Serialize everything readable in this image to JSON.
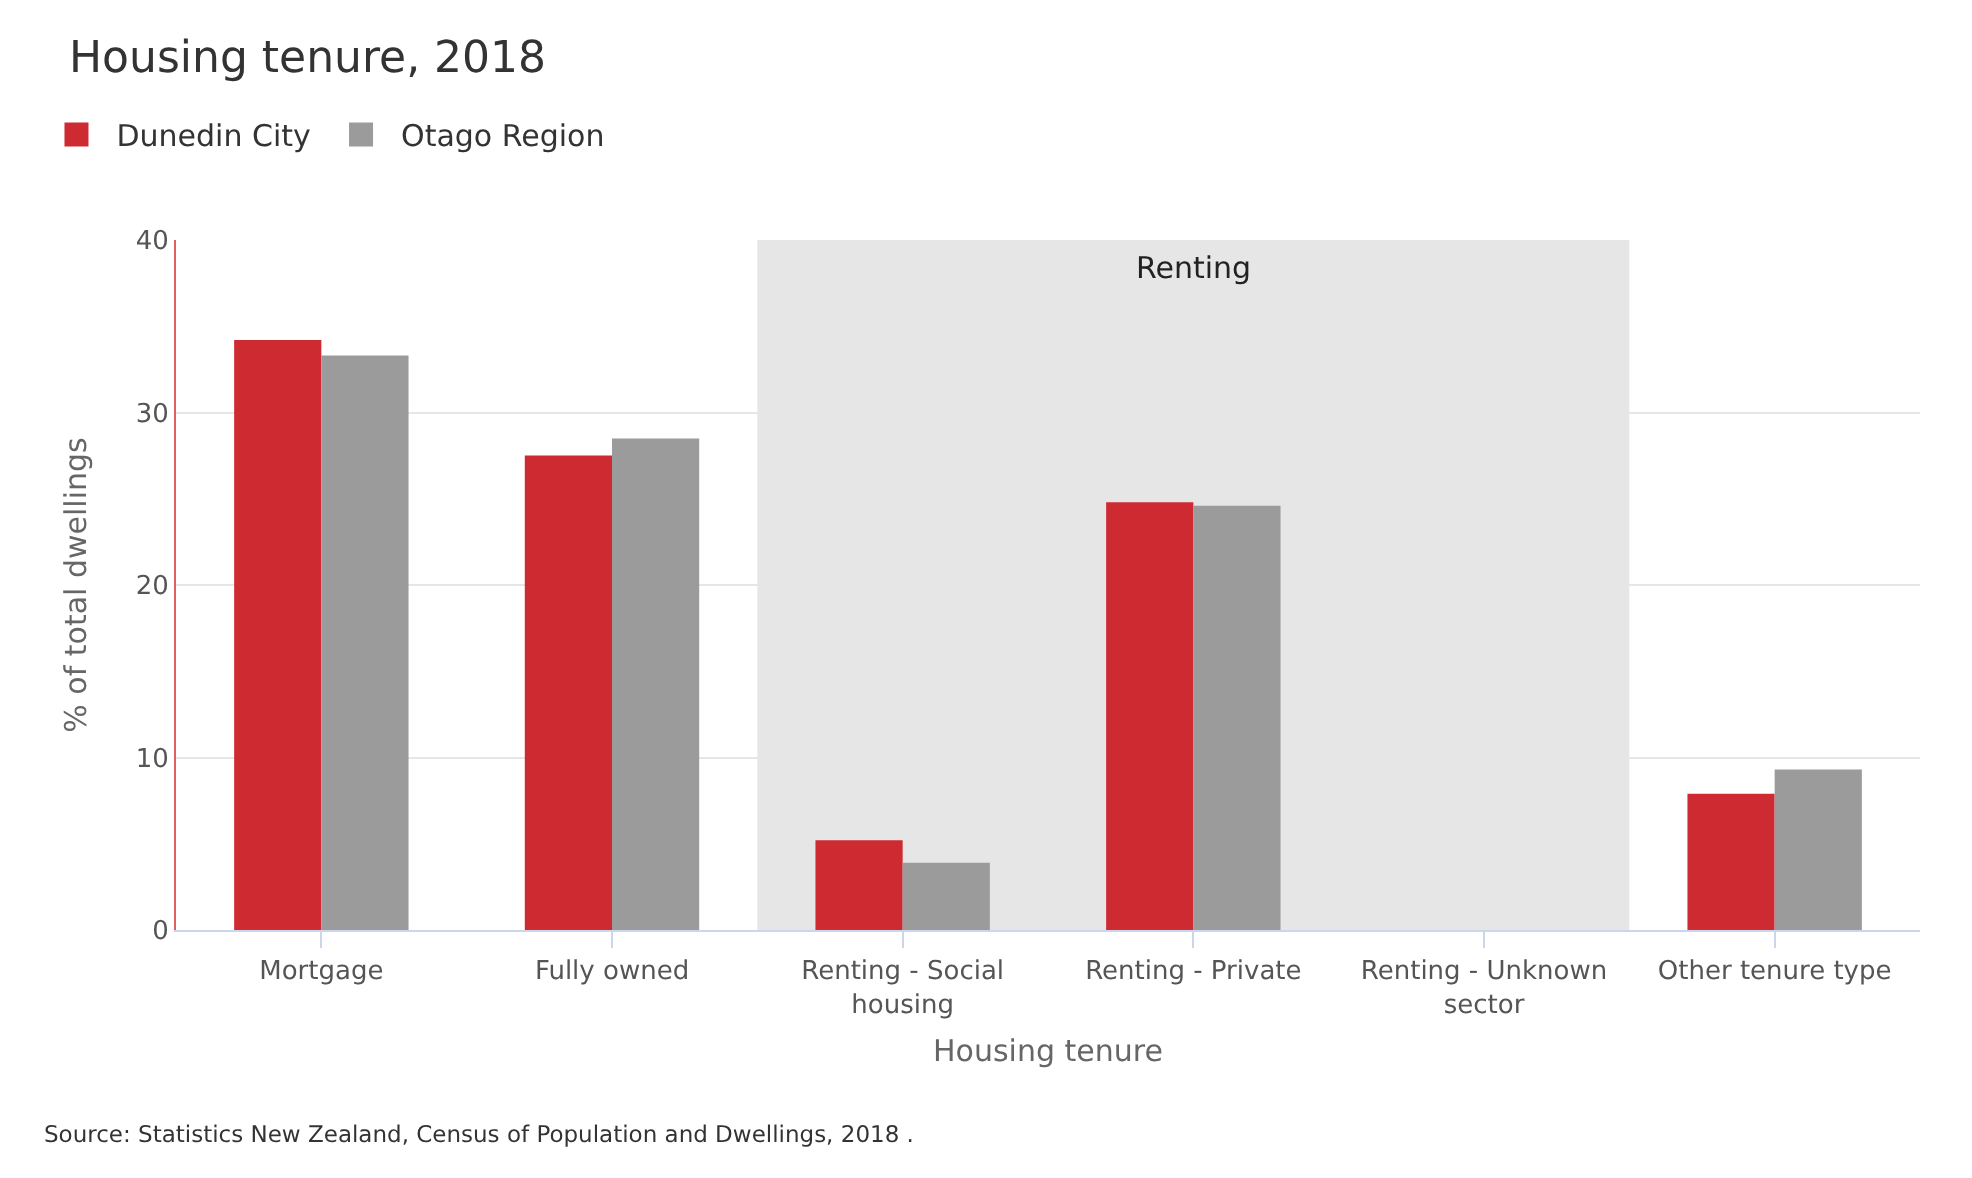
{
  "chart_data": {
    "type": "bar",
    "title": "Housing tenure, 2018",
    "xlabel": "Housing tenure",
    "ylabel": "% of total dwellings",
    "categories": [
      "Mortgage",
      "Fully owned",
      "Renting - Social housing",
      "Renting - Private",
      "Renting - Unknown sector",
      "Other tenure type"
    ],
    "series": [
      {
        "name": "Dunedin City",
        "color": "#ce2a32",
        "values": [
          34.2,
          27.5,
          5.2,
          24.8,
          0,
          7.9
        ]
      },
      {
        "name": "Otago Region",
        "color": "#9b9b9b",
        "values": [
          33.3,
          28.5,
          3.9,
          24.6,
          0,
          9.3
        ]
      }
    ],
    "ylim": [
      0,
      40
    ],
    "yticks": [
      0,
      10,
      20,
      30,
      40
    ],
    "grid": "y",
    "legend": "top left",
    "bands": [
      {
        "axis": "x",
        "from": "Renting - Social housing",
        "to": "Renting - Unknown sector",
        "label": "Renting",
        "color": "#e6e6e6"
      }
    ],
    "annotations": [
      "Source: Statistics New Zealand, Census of Population and Dwellings, 2018 ."
    ]
  }
}
